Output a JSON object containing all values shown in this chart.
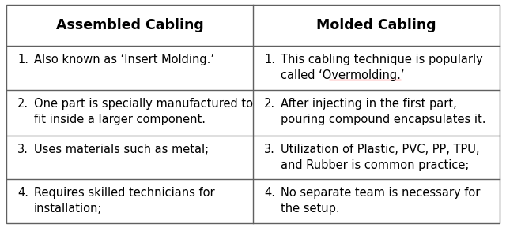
{
  "title_left": "Assembled Cabling",
  "title_right": "Molded Cabling",
  "left_items": [
    [
      "1.",
      "Also known as ‘Insert Molding.’"
    ],
    [
      "2.",
      "One part is specially manufactured to\nfit inside a larger component."
    ],
    [
      "3.",
      "Uses materials such as metal;"
    ],
    [
      "4.",
      "Requires skilled technicians for\ninstallation;"
    ]
  ],
  "right_items": [
    [
      "1.",
      "This cabling technique is popularly\ncalled ‘Overmolding.’"
    ],
    [
      "2.",
      "After injecting in the first part,\npouring compound encapsulates it."
    ],
    [
      "3.",
      "Utilization of Plastic, PVC, PP, TPU,\nand Rubber is common practice;"
    ],
    [
      "4.",
      "No separate team is necessary for\nthe setup."
    ]
  ],
  "bg_color": "#ffffff",
  "border_color": "#606060",
  "text_color": "#000000",
  "header_fontsize": 12.5,
  "body_fontsize": 10.5,
  "fig_width": 6.4,
  "fig_height": 2.89,
  "dpi": 100
}
